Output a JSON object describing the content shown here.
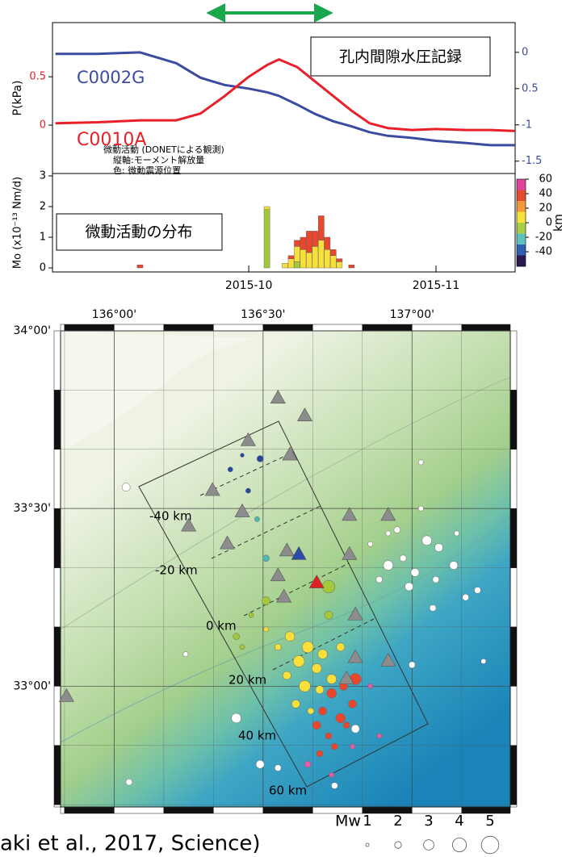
{
  "chart_data": [
    {
      "type": "line",
      "ylabel": "P(kPa)",
      "box_label": "孔内間隙水圧記録",
      "xlim": [
        -32.5,
        44.1
      ],
      "ylim": [
        -0.5,
        1.06
      ],
      "yticks": [
        0,
        0.5
      ],
      "y2lim": [
        -1.67,
        0.41
      ],
      "y2ticks": [
        0,
        {
          "value": -0.5,
          "label": "0.5"
        },
        -1,
        -1.5
      ],
      "x": [
        -32,
        -25,
        -18,
        -12,
        -8,
        -4,
        0,
        3,
        5,
        8,
        11,
        14,
        17,
        20,
        23,
        27,
        31,
        36,
        40,
        44
      ],
      "series": [
        {
          "name": "C0002G",
          "color": "#3b4ba0",
          "axis": "y2",
          "values": [
            -0.02,
            -0.02,
            0.0,
            -0.15,
            -0.35,
            -0.45,
            -0.5,
            -0.55,
            -0.6,
            -0.72,
            -0.85,
            -0.95,
            -1.02,
            -1.1,
            -1.15,
            -1.18,
            -1.22,
            -1.25,
            -1.28,
            -1.28
          ]
        },
        {
          "name": "C0010A",
          "color": "#e8202a",
          "values": [
            0.02,
            0.03,
            0.05,
            0.05,
            0.12,
            0.3,
            0.5,
            0.62,
            0.68,
            0.6,
            0.45,
            0.3,
            0.15,
            0.02,
            -0.03,
            -0.05,
            -0.04,
            -0.05,
            -0.05,
            -0.06
          ]
        }
      ]
    },
    {
      "type": "bar",
      "ylabel": "Mo (x10⁻¹³ Nm/d)",
      "box_label": "微動活動の分布",
      "notes": [
        "微動活動 (DONETによる観測)",
        "縦軸:モーメント解放量",
        "色: 微動震源位置"
      ],
      "xlim": [
        -32.5,
        44.1
      ],
      "xticks": [
        {
          "value": 0,
          "label": "2015-10"
        },
        {
          "value": 31,
          "label": "2015-11"
        }
      ],
      "ylim": [
        0,
        3
      ],
      "yticks": [
        0,
        1,
        2,
        3
      ],
      "x": [
        -18,
        3,
        6,
        7,
        8,
        9,
        10,
        11,
        12,
        13,
        14,
        15,
        17
      ],
      "series": [
        {
          "color": "#a3c93a",
          "values": [
            0,
            1.9,
            0,
            0,
            0.2,
            0,
            0,
            0,
            0,
            0,
            0,
            0,
            0
          ]
        },
        {
          "color": "#f7e03c",
          "values": [
            0,
            0.1,
            0.15,
            0.3,
            0.5,
            0.6,
            0.5,
            0.7,
            0.9,
            0.6,
            0.4,
            0.2,
            0
          ]
        },
        {
          "color": "#e8462d",
          "values": [
            0.1,
            0,
            0,
            0.1,
            0.2,
            0.4,
            0.7,
            0.5,
            0.8,
            0.4,
            0.2,
            0.1,
            0.1
          ]
        }
      ],
      "colorbar": {
        "label": "km",
        "clim": [
          -60,
          60
        ],
        "ticks": [
          60,
          40,
          20,
          0,
          -20,
          -40
        ],
        "colors": [
          "#e0449b",
          "#e64a2e",
          "#f29a3a",
          "#f5e23a",
          "#a8cf45",
          "#5cc3bf",
          "#3060b0",
          "#2a1a4e"
        ]
      }
    },
    {
      "type": "scatter",
      "xlim": [
        135.82,
        137.33
      ],
      "ylim": [
        32.66,
        34.0
      ],
      "xticks": [
        {
          "value": 136,
          "label": "136°00'"
        },
        {
          "value": 136.5,
          "label": "136°30'"
        },
        {
          "value": 137,
          "label": "137°00'"
        }
      ],
      "yticks": [
        {
          "value": 34,
          "label": "34°00'"
        },
        {
          "value": 33.5,
          "label": "33°30'"
        },
        {
          "value": 33,
          "label": "33°00'"
        }
      ],
      "profile_labels": [
        "-40 km",
        "-20 km",
        "0 km",
        "20 km",
        "40 km",
        "60 km"
      ],
      "stations": {
        "color": "#8c8c8c",
        "x": [
          136.55,
          136.64,
          136.45,
          136.59,
          136.33,
          136.43,
          136.25,
          136.38,
          136.79,
          136.92,
          136.79,
          136.58,
          136.55,
          136.57,
          136.81,
          136.81,
          136.92,
          136.78,
          135.84
        ],
        "y": [
          33.81,
          33.76,
          33.69,
          33.65,
          33.55,
          33.49,
          33.45,
          33.4,
          33.48,
          33.48,
          33.37,
          33.38,
          33.31,
          33.25,
          33.2,
          33.08,
          33.07,
          33.02,
          32.97
        ]
      },
      "boreholes": [
        {
          "color": "#e02020",
          "x": 136.68,
          "y": 33.29
        },
        {
          "color": "#2a4aa8",
          "x": 136.62,
          "y": 33.37
        }
      ],
      "series": [
        {
          "color": "#ffffff",
          "x": [
            136.04,
            136.41,
            136.24,
            136.05,
            136.49,
            136.55,
            136.74,
            136.81,
            137.0,
            136.95,
            137.03,
            137.05,
            137.09,
            136.97,
            136.92,
            137.14,
            137.01,
            137.08,
            136.99,
            136.89,
            137.18,
            137.22,
            137.03,
            137.24,
            137.07,
            136.92,
            136.86,
            137.15
          ],
          "y": [
            33.56,
            32.91,
            33.09,
            32.73,
            32.78,
            32.77,
            32.72,
            32.88,
            33.06,
            33.44,
            33.5,
            33.41,
            33.39,
            33.36,
            33.34,
            33.34,
            33.32,
            33.3,
            33.28,
            33.3,
            33.25,
            33.27,
            33.63,
            33.07,
            33.22,
            33.43,
            33.4,
            33.43
          ],
          "sizes": [
            2.4,
            2.8,
            1.5,
            1.9,
            2.4,
            1.9,
            1.9,
            2.4,
            1.9,
            1.9,
            1.5,
            2.8,
            2.4,
            1.9,
            2.8,
            2.4,
            2.4,
            1.9,
            2.4,
            1.9,
            1.9,
            1.9,
            1.5,
            1.5,
            1.9,
            1.5,
            1.5,
            1.5
          ]
        },
        {
          "color": "#a3c93a",
          "x": [
            136.72,
            136.41,
            136.46,
            136.51,
            136.43,
            136.72
          ],
          "y": [
            33.28,
            33.14,
            33.2,
            33.24,
            33.11,
            33.2
          ],
          "sizes": [
            3.7,
            1.9,
            1.5,
            2.4,
            1.5,
            2.4
          ]
        },
        {
          "color": "#4fb8b0",
          "x": [
            136.51,
            136.43,
            136.48
          ],
          "y": [
            33.36,
            33.49,
            33.47
          ],
          "sizes": [
            1.9,
            1.5,
            1.5
          ]
        },
        {
          "color": "#2746a0",
          "x": [
            136.49,
            136.39,
            136.45,
            136.43
          ],
          "y": [
            33.64,
            33.61,
            33.55,
            33.65
          ],
          "sizes": [
            1.9,
            1.5,
            1.5,
            1.2
          ]
        },
        {
          "color": "#f7e03c",
          "x": [
            136.59,
            136.65,
            136.7,
            136.62,
            136.68,
            136.58,
            136.73,
            136.64,
            136.69,
            136.55,
            136.51,
            136.76,
            136.61,
            136.66
          ],
          "y": [
            33.14,
            33.11,
            33.09,
            33.07,
            33.05,
            33.03,
            33.02,
            33.0,
            32.99,
            33.11,
            33.16,
            33.11,
            32.95,
            32.93
          ],
          "sizes": [
            2.8,
            3.3,
            2.8,
            3.3,
            2.8,
            2.4,
            2.8,
            3.3,
            2.4,
            1.9,
            1.5,
            2.4,
            2.4,
            1.9
          ]
        },
        {
          "color": "#e8462d",
          "x": [
            136.73,
            136.77,
            136.7,
            136.76,
            136.68,
            136.72,
            136.8,
            136.74,
            136.69,
            136.81,
            136.78
          ],
          "y": [
            32.98,
            33.0,
            32.93,
            32.91,
            32.89,
            32.86,
            32.95,
            32.83,
            32.81,
            33.02,
            32.89
          ],
          "sizes": [
            2.8,
            2.4,
            2.4,
            2.8,
            2.4,
            1.9,
            2.4,
            1.9,
            1.9,
            3.3,
            1.9
          ]
        },
        {
          "color": "#e65ca8",
          "x": [
            136.8,
            136.86,
            136.89,
            136.73,
            136.65
          ],
          "y": [
            32.83,
            33.0,
            32.86,
            32.75,
            32.78
          ],
          "sizes": [
            1.5,
            1.5,
            1.5,
            1.5,
            1.9
          ]
        }
      ],
      "size_legend": {
        "label": "Mw",
        "sizes": [
          1,
          2,
          3,
          4,
          5
        ]
      }
    }
  ],
  "citation": "aki et al., 2017, Science)"
}
